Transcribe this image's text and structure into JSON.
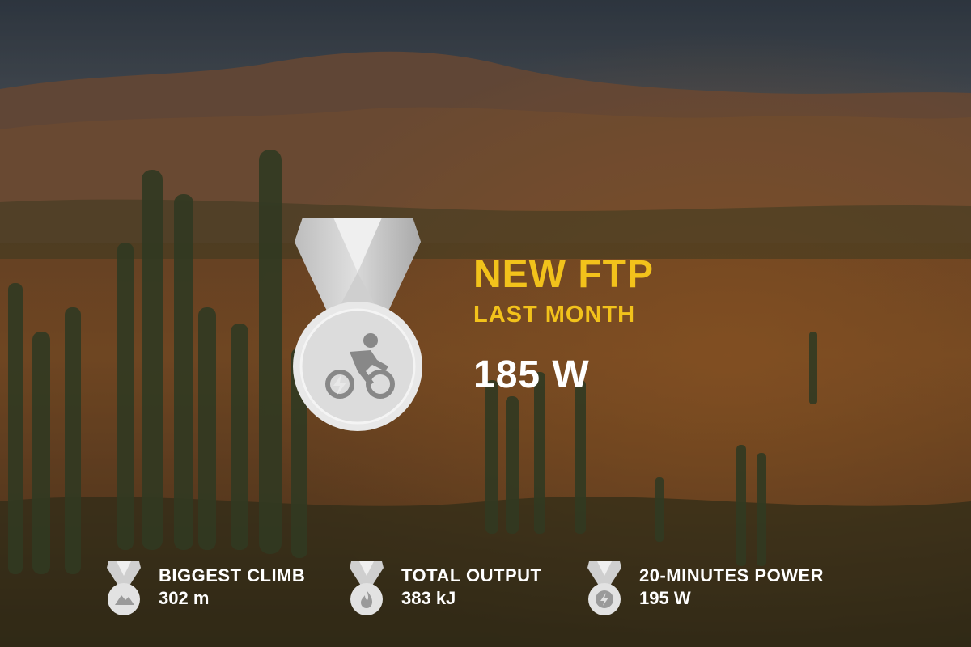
{
  "achievement": {
    "title": "NEW FTP",
    "subtitle": "LAST MONTH",
    "value": "185 W",
    "medal_icon": "cycling-power-icon"
  },
  "stats": [
    {
      "label": "BIGGEST CLIMB",
      "value": "302 m",
      "icon": "mountain-icon"
    },
    {
      "label": "TOTAL OUTPUT",
      "value": "383 kJ",
      "icon": "flame-icon"
    },
    {
      "label": "20-MINUTES POWER",
      "value": "195 W",
      "icon": "lightning-icon"
    }
  ],
  "colors": {
    "accent": "#f2c21b",
    "text": "#ffffff",
    "medal": "#e6e6e6"
  }
}
